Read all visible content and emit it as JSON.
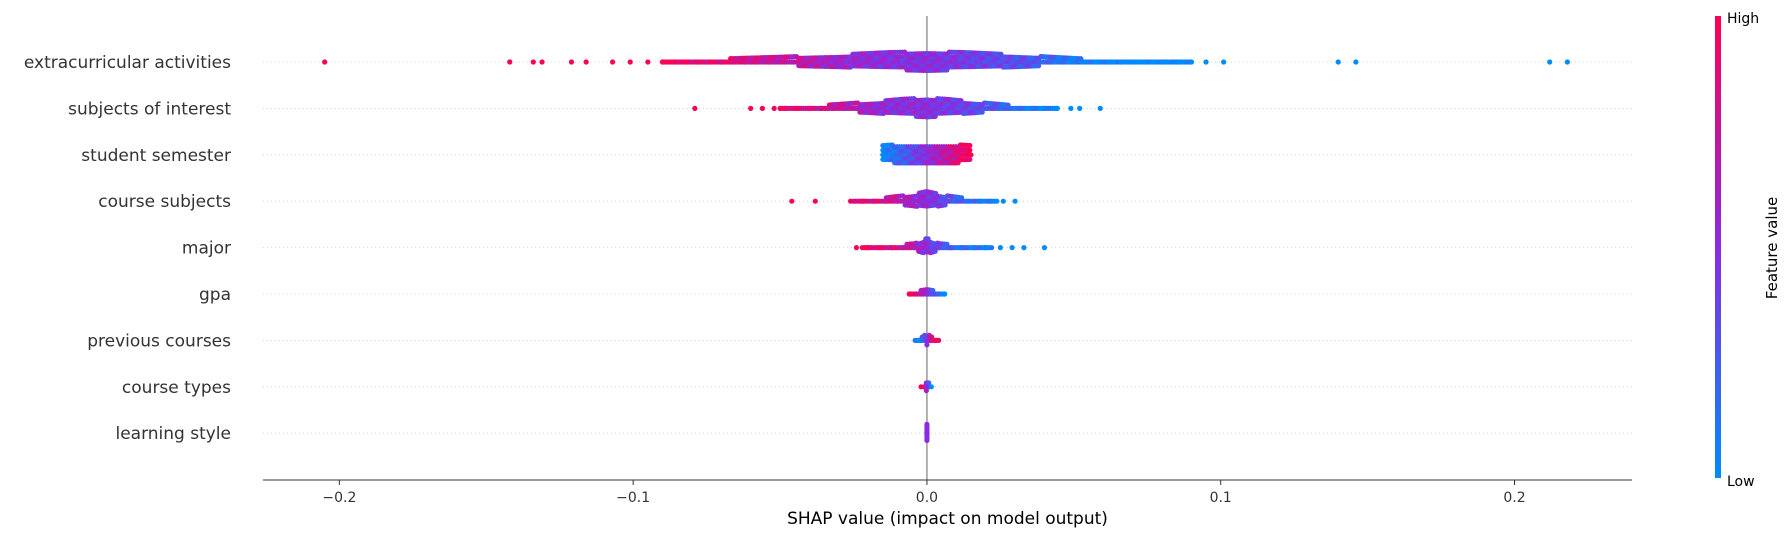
{
  "chart_data": {
    "type": "scatter",
    "subtype": "shap-beeswarm",
    "xlabel": "SHAP value (impact on model output)",
    "xlim": [
      -0.226,
      0.24
    ],
    "xticks": [
      {
        "value": -0.2,
        "label": "−0.2"
      },
      {
        "value": -0.1,
        "label": "−0.1"
      },
      {
        "value": 0.0,
        "label": "0.0"
      },
      {
        "value": 0.1,
        "label": "0.1"
      },
      {
        "value": 0.2,
        "label": "0.2"
      }
    ],
    "zero_line": 0.0,
    "grid": "horizontal dotted lines per feature",
    "colorbar": {
      "label": "Feature value",
      "high_label": "High",
      "low_label": "Low",
      "high_color": "#ff0052",
      "mid_color": "#8a2be2",
      "low_color": "#008bfb"
    },
    "features": [
      {
        "name": "extracurricular activities",
        "points": [
          [
            -0.205,
            1
          ],
          [
            -0.142,
            1
          ],
          [
            -0.134,
            1
          ],
          [
            -0.131,
            1
          ],
          [
            -0.121,
            1
          ],
          [
            -0.116,
            1
          ],
          [
            -0.107,
            1
          ],
          [
            -0.101,
            1
          ],
          [
            -0.095,
            1
          ],
          [
            -0.09,
            1
          ],
          [
            -0.086,
            0.95
          ],
          [
            -0.082,
            0.95
          ],
          [
            -0.078,
            0.9
          ],
          [
            -0.074,
            0.9
          ],
          [
            -0.07,
            0.85
          ],
          [
            -0.066,
            0.85
          ],
          [
            -0.062,
            0.8
          ],
          [
            -0.058,
            0.8
          ],
          [
            -0.054,
            0.75
          ],
          [
            -0.05,
            0.75
          ],
          [
            -0.046,
            0.7
          ],
          [
            -0.042,
            0.7
          ],
          [
            -0.038,
            0.65
          ],
          [
            -0.034,
            0.6
          ],
          [
            -0.03,
            0.6
          ],
          [
            -0.026,
            0.55
          ],
          [
            -0.022,
            0.55
          ],
          [
            -0.018,
            0.5
          ],
          [
            -0.014,
            0.5
          ],
          [
            -0.01,
            0.5
          ],
          [
            -0.006,
            0.5
          ],
          [
            -0.002,
            0.5
          ],
          [
            0.002,
            0.5
          ],
          [
            0.006,
            0.45
          ],
          [
            0.01,
            0.45
          ],
          [
            0.014,
            0.4
          ],
          [
            0.018,
            0.4
          ],
          [
            0.022,
            0.35
          ],
          [
            0.026,
            0.35
          ],
          [
            0.03,
            0.3
          ],
          [
            0.034,
            0.3
          ],
          [
            0.038,
            0.25
          ],
          [
            0.042,
            0.2
          ],
          [
            0.046,
            0.15
          ],
          [
            0.05,
            0.1
          ],
          [
            0.054,
            0.05
          ],
          [
            0.058,
            0.0
          ],
          [
            0.062,
            0.0
          ],
          [
            0.066,
            0.0
          ],
          [
            0.07,
            0.0
          ],
          [
            0.074,
            0.0
          ],
          [
            0.08,
            0.0
          ],
          [
            0.085,
            0.0
          ],
          [
            0.09,
            0.0
          ],
          [
            0.095,
            0.0
          ],
          [
            0.101,
            0.0
          ],
          [
            0.14,
            0.0
          ],
          [
            0.146,
            0.0
          ],
          [
            0.212,
            0.0
          ],
          [
            0.218,
            0.0
          ]
        ],
        "density": [
          [
            -0.09,
            0.08
          ],
          [
            -0.07,
            0.14
          ],
          [
            -0.05,
            0.22
          ],
          [
            -0.03,
            0.32
          ],
          [
            -0.015,
            0.42
          ],
          [
            0.0,
            0.48
          ],
          [
            0.015,
            0.42
          ],
          [
            0.03,
            0.32
          ],
          [
            0.045,
            0.2
          ],
          [
            0.06,
            0.1
          ],
          [
            0.075,
            0.05
          ],
          [
            0.09,
            0.02
          ]
        ]
      },
      {
        "name": "subjects of interest",
        "points": [
          [
            -0.079,
            1
          ],
          [
            -0.06,
            1
          ],
          [
            -0.056,
            1
          ],
          [
            -0.052,
            0.95
          ],
          [
            -0.048,
            0.9
          ],
          [
            -0.044,
            0.9
          ],
          [
            -0.04,
            0.85
          ],
          [
            -0.036,
            0.8
          ],
          [
            -0.032,
            0.75
          ],
          [
            -0.028,
            0.7
          ],
          [
            -0.024,
            0.65
          ],
          [
            -0.02,
            0.6
          ],
          [
            -0.016,
            0.55
          ],
          [
            -0.012,
            0.5
          ],
          [
            -0.008,
            0.5
          ],
          [
            -0.004,
            0.5
          ],
          [
            0.0,
            0.5
          ],
          [
            0.004,
            0.45
          ],
          [
            0.008,
            0.45
          ],
          [
            0.012,
            0.4
          ],
          [
            0.016,
            0.35
          ],
          [
            0.02,
            0.3
          ],
          [
            0.024,
            0.25
          ],
          [
            0.028,
            0.2
          ],
          [
            0.032,
            0.15
          ],
          [
            0.036,
            0.1
          ],
          [
            0.04,
            0.05
          ],
          [
            0.044,
            0.0
          ],
          [
            0.049,
            0.0
          ],
          [
            0.052,
            0.0
          ],
          [
            0.059,
            0.0
          ]
        ],
        "density": [
          [
            -0.05,
            0.06
          ],
          [
            -0.035,
            0.14
          ],
          [
            -0.02,
            0.28
          ],
          [
            -0.008,
            0.42
          ],
          [
            0.0,
            0.48
          ],
          [
            0.008,
            0.4
          ],
          [
            0.02,
            0.24
          ],
          [
            0.032,
            0.1
          ],
          [
            0.045,
            0.03
          ]
        ]
      },
      {
        "name": "student semester",
        "points": [
          [
            -0.015,
            0.0
          ],
          [
            -0.012,
            0.1
          ],
          [
            -0.009,
            0.2
          ],
          [
            -0.006,
            0.3
          ],
          [
            -0.003,
            0.4
          ],
          [
            0.0,
            0.5
          ],
          [
            0.003,
            0.6
          ],
          [
            0.006,
            0.7
          ],
          [
            0.009,
            0.8
          ],
          [
            0.012,
            0.9
          ],
          [
            0.015,
            1.0
          ]
        ],
        "density": [
          [
            -0.015,
            0.42
          ],
          [
            -0.01,
            0.46
          ],
          [
            -0.005,
            0.46
          ],
          [
            0.0,
            0.46
          ],
          [
            0.005,
            0.46
          ],
          [
            0.01,
            0.46
          ],
          [
            0.015,
            0.42
          ]
        ]
      },
      {
        "name": "course subjects",
        "points": [
          [
            -0.046,
            1
          ],
          [
            -0.038,
            1
          ],
          [
            -0.026,
            0.95
          ],
          [
            -0.022,
            0.9
          ],
          [
            -0.018,
            0.85
          ],
          [
            -0.014,
            0.8
          ],
          [
            -0.01,
            0.7
          ],
          [
            -0.006,
            0.6
          ],
          [
            -0.002,
            0.55
          ],
          [
            0.0,
            0.5
          ],
          [
            0.003,
            0.45
          ],
          [
            0.006,
            0.35
          ],
          [
            0.01,
            0.25
          ],
          [
            0.014,
            0.15
          ],
          [
            0.018,
            0.1
          ],
          [
            0.022,
            0.05
          ],
          [
            0.026,
            0.0
          ],
          [
            0.03,
            0.0
          ]
        ],
        "density": [
          [
            -0.025,
            0.06
          ],
          [
            -0.015,
            0.14
          ],
          [
            -0.006,
            0.28
          ],
          [
            0.0,
            0.44
          ],
          [
            0.006,
            0.26
          ],
          [
            0.015,
            0.1
          ],
          [
            0.024,
            0.03
          ]
        ]
      },
      {
        "name": "major",
        "points": [
          [
            -0.024,
            1
          ],
          [
            -0.02,
            0.95
          ],
          [
            -0.016,
            0.9
          ],
          [
            -0.012,
            0.85
          ],
          [
            -0.008,
            0.75
          ],
          [
            -0.004,
            0.65
          ],
          [
            0.0,
            0.5
          ],
          [
            0.004,
            0.35
          ],
          [
            0.008,
            0.25
          ],
          [
            0.012,
            0.15
          ],
          [
            0.016,
            0.1
          ],
          [
            0.02,
            0.05
          ],
          [
            0.025,
            0.0
          ],
          [
            0.029,
            0.0
          ],
          [
            0.033,
            0.0
          ],
          [
            0.04,
            0.0
          ]
        ],
        "density": [
          [
            -0.022,
            0.05
          ],
          [
            -0.012,
            0.1
          ],
          [
            -0.004,
            0.18
          ],
          [
            0.0,
            0.42
          ],
          [
            0.004,
            0.18
          ],
          [
            0.012,
            0.1
          ],
          [
            0.022,
            0.04
          ]
        ]
      },
      {
        "name": "gpa",
        "points": [
          [
            -0.006,
            1
          ],
          [
            -0.004,
            0.9
          ],
          [
            -0.002,
            0.7
          ],
          [
            0.0,
            0.5
          ],
          [
            0.002,
            0.3
          ],
          [
            0.004,
            0.15
          ],
          [
            0.006,
            0.0
          ]
        ],
        "density": [
          [
            -0.006,
            0.1
          ],
          [
            -0.003,
            0.14
          ],
          [
            0.0,
            0.2
          ],
          [
            0.003,
            0.14
          ],
          [
            0.006,
            0.1
          ]
        ]
      },
      {
        "name": "previous courses",
        "points": [
          [
            -0.003,
            0.0
          ],
          [
            -0.0015,
            0.2
          ],
          [
            0.0,
            0.5
          ],
          [
            0.0015,
            0.8
          ],
          [
            0.003,
            1.0
          ]
        ],
        "density": [
          [
            -0.004,
            0.04
          ],
          [
            -0.002,
            0.12
          ],
          [
            0.0,
            0.3
          ],
          [
            0.002,
            0.12
          ],
          [
            0.004,
            0.04
          ]
        ]
      },
      {
        "name": "course types",
        "points": [
          [
            -0.002,
            1.0
          ],
          [
            0.0,
            0.5
          ],
          [
            0.0015,
            0.0
          ]
        ],
        "density": [
          [
            -0.001,
            0.1
          ],
          [
            0.0,
            0.3
          ],
          [
            0.001,
            0.1
          ]
        ]
      },
      {
        "name": "learning style",
        "points": [
          [
            0.0,
            0.5
          ]
        ],
        "density": [
          [
            0.0,
            0.4
          ]
        ]
      }
    ]
  }
}
